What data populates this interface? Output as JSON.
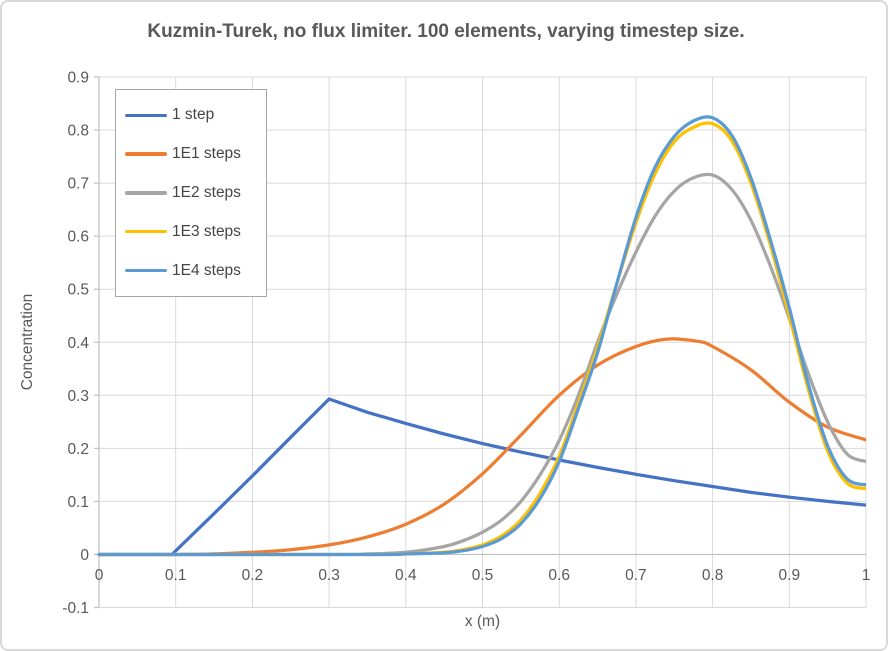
{
  "chart_data": {
    "type": "line",
    "title": "Kuzmin-Turek, no flux limiter. 100 elements, varying timestep size.",
    "xlabel": "x (m)",
    "ylabel": "Concentration",
    "xlim": [
      0,
      1
    ],
    "ylim": [
      -0.1,
      0.9
    ],
    "x_ticks": [
      "0",
      "0.1",
      "0.2",
      "0.3",
      "0.4",
      "0.5",
      "0.6",
      "0.7",
      "0.8",
      "0.9",
      "1"
    ],
    "y_ticks": [
      "-0.1",
      "0",
      "0.1",
      "0.2",
      "0.3",
      "0.4",
      "0.5",
      "0.6",
      "0.7",
      "0.8",
      "0.9"
    ],
    "grid": true,
    "legend_position": "top-left",
    "style": {
      "gridline": "#d9d9d9",
      "axis_line": "#bfbfbf",
      "axis_text": "#595959",
      "title_text": "#595959",
      "legend_border": "#a6a6a6",
      "background": "#ffffff",
      "line_width": 3.25
    },
    "series": [
      {
        "name": "1 step",
        "color": "#4472C4",
        "smooth": false,
        "points": [
          [
            0,
            0
          ],
          [
            0.05,
            0
          ],
          [
            0.095,
            0
          ],
          [
            0.15,
            0.077
          ],
          [
            0.2,
            0.148
          ],
          [
            0.25,
            0.221
          ],
          [
            0.3,
            0.293
          ],
          [
            0.35,
            0.268
          ],
          [
            0.4,
            0.247
          ],
          [
            0.45,
            0.227
          ],
          [
            0.5,
            0.209
          ],
          [
            0.55,
            0.193
          ],
          [
            0.6,
            0.178
          ],
          [
            0.65,
            0.164
          ],
          [
            0.7,
            0.151
          ],
          [
            0.75,
            0.139
          ],
          [
            0.8,
            0.128
          ],
          [
            0.85,
            0.117
          ],
          [
            0.9,
            0.108
          ],
          [
            0.95,
            0.1
          ],
          [
            1,
            0.093
          ]
        ]
      },
      {
        "name": "1E1 steps",
        "color": "#ED7D31",
        "smooth": true,
        "points": [
          [
            0,
            0
          ],
          [
            0.1,
            0
          ],
          [
            0.15,
            0.001
          ],
          [
            0.2,
            0.004
          ],
          [
            0.25,
            0.009
          ],
          [
            0.3,
            0.018
          ],
          [
            0.35,
            0.033
          ],
          [
            0.4,
            0.057
          ],
          [
            0.45,
            0.095
          ],
          [
            0.5,
            0.152
          ],
          [
            0.55,
            0.225
          ],
          [
            0.6,
            0.3
          ],
          [
            0.65,
            0.357
          ],
          [
            0.7,
            0.392
          ],
          [
            0.74,
            0.406
          ],
          [
            0.78,
            0.402
          ],
          [
            0.8,
            0.392
          ],
          [
            0.85,
            0.348
          ],
          [
            0.9,
            0.287
          ],
          [
            0.95,
            0.24
          ],
          [
            1,
            0.216
          ]
        ]
      },
      {
        "name": "1E2 steps",
        "color": "#A5A5A5",
        "smooth": true,
        "points": [
          [
            0,
            0
          ],
          [
            0.3,
            0
          ],
          [
            0.35,
            0.001
          ],
          [
            0.4,
            0.004
          ],
          [
            0.45,
            0.015
          ],
          [
            0.475,
            0.026
          ],
          [
            0.5,
            0.042
          ],
          [
            0.525,
            0.065
          ],
          [
            0.55,
            0.1
          ],
          [
            0.575,
            0.15
          ],
          [
            0.6,
            0.215
          ],
          [
            0.625,
            0.3
          ],
          [
            0.65,
            0.4
          ],
          [
            0.675,
            0.49
          ],
          [
            0.7,
            0.57
          ],
          [
            0.725,
            0.638
          ],
          [
            0.75,
            0.685
          ],
          [
            0.775,
            0.71
          ],
          [
            0.8,
            0.715
          ],
          [
            0.825,
            0.688
          ],
          [
            0.85,
            0.63
          ],
          [
            0.875,
            0.545
          ],
          [
            0.9,
            0.445
          ],
          [
            0.925,
            0.34
          ],
          [
            0.95,
            0.25
          ],
          [
            0.975,
            0.19
          ],
          [
            1,
            0.175
          ]
        ]
      },
      {
        "name": "1E3 steps",
        "color": "#FFC000",
        "smooth": true,
        "points": [
          [
            0,
            0
          ],
          [
            0.35,
            0
          ],
          [
            0.4,
            0.001
          ],
          [
            0.45,
            0.004
          ],
          [
            0.475,
            0.009
          ],
          [
            0.5,
            0.018
          ],
          [
            0.525,
            0.035
          ],
          [
            0.55,
            0.065
          ],
          [
            0.575,
            0.115
          ],
          [
            0.6,
            0.185
          ],
          [
            0.625,
            0.285
          ],
          [
            0.65,
            0.39
          ],
          [
            0.675,
            0.51
          ],
          [
            0.7,
            0.625
          ],
          [
            0.725,
            0.718
          ],
          [
            0.75,
            0.778
          ],
          [
            0.775,
            0.805
          ],
          [
            0.8,
            0.812
          ],
          [
            0.825,
            0.78
          ],
          [
            0.85,
            0.7
          ],
          [
            0.875,
            0.585
          ],
          [
            0.9,
            0.45
          ],
          [
            0.925,
            0.31
          ],
          [
            0.95,
            0.195
          ],
          [
            0.975,
            0.135
          ],
          [
            1,
            0.124
          ]
        ]
      },
      {
        "name": "1E4 steps",
        "color": "#5B9BD5",
        "smooth": true,
        "points": [
          [
            0,
            0
          ],
          [
            0.35,
            0
          ],
          [
            0.4,
            0.001
          ],
          [
            0.45,
            0.003
          ],
          [
            0.475,
            0.007
          ],
          [
            0.5,
            0.015
          ],
          [
            0.525,
            0.03
          ],
          [
            0.55,
            0.058
          ],
          [
            0.575,
            0.105
          ],
          [
            0.6,
            0.175
          ],
          [
            0.625,
            0.275
          ],
          [
            0.65,
            0.38
          ],
          [
            0.675,
            0.51
          ],
          [
            0.7,
            0.635
          ],
          [
            0.725,
            0.73
          ],
          [
            0.75,
            0.788
          ],
          [
            0.775,
            0.817
          ],
          [
            0.8,
            0.823
          ],
          [
            0.825,
            0.79
          ],
          [
            0.85,
            0.71
          ],
          [
            0.875,
            0.595
          ],
          [
            0.9,
            0.465
          ],
          [
            0.925,
            0.32
          ],
          [
            0.95,
            0.205
          ],
          [
            0.975,
            0.143
          ],
          [
            1,
            0.131
          ]
        ]
      }
    ]
  }
}
